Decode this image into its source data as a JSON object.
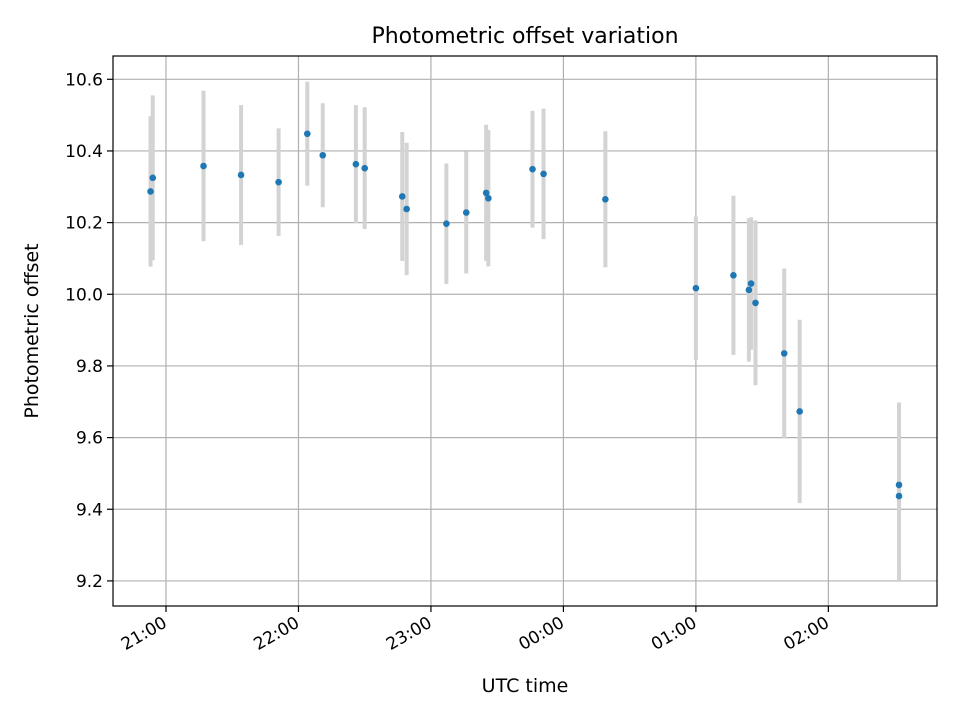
{
  "chart_data": {
    "type": "scatter",
    "title": "Photometric offset variation",
    "xlabel": "UTC time",
    "ylabel": "Photometric offset",
    "x_tick_labels": [
      "21:00",
      "22:00",
      "23:00",
      "00:00",
      "01:00",
      "02:00"
    ],
    "x_tick_positions_hours": [
      21,
      22,
      23,
      24,
      25,
      26
    ],
    "xlim_hours": [
      20.6,
      26.82
    ],
    "y_ticks": [
      9.2,
      9.4,
      9.6,
      9.8,
      10.0,
      10.2,
      10.4,
      10.6
    ],
    "y_tick_labels": [
      "9.2",
      "9.4",
      "9.6",
      "9.8",
      "10.0",
      "10.2",
      "10.4",
      "10.6"
    ],
    "ylim": [
      9.13,
      10.665
    ],
    "grid": true,
    "x_time_format": "HH:MM (UTC, next day after 00:00)",
    "errorbar_color": "#d3d3d3",
    "point_color": "#1f77b4",
    "points": [
      {
        "t": "20:53",
        "y": 10.287,
        "err": 0.21
      },
      {
        "t": "20:54",
        "y": 10.325,
        "err": 0.23
      },
      {
        "t": "21:17",
        "y": 10.358,
        "err": 0.21
      },
      {
        "t": "21:34",
        "y": 10.333,
        "err": 0.195
      },
      {
        "t": "21:51",
        "y": 10.313,
        "err": 0.15
      },
      {
        "t": "22:04",
        "y": 10.448,
        "err": 0.145
      },
      {
        "t": "22:11",
        "y": 10.388,
        "err": 0.145
      },
      {
        "t": "22:26",
        "y": 10.363,
        "err": 0.165
      },
      {
        "t": "22:30",
        "y": 10.352,
        "err": 0.17
      },
      {
        "t": "22:47",
        "y": 10.273,
        "err": 0.18
      },
      {
        "t": "22:49",
        "y": 10.238,
        "err": 0.185
      },
      {
        "t": "23:07",
        "y": 10.197,
        "err": 0.168
      },
      {
        "t": "23:16",
        "y": 10.228,
        "err": 0.17
      },
      {
        "t": "23:25",
        "y": 10.283,
        "err": 0.19
      },
      {
        "t": "23:26",
        "y": 10.268,
        "err": 0.19
      },
      {
        "t": "23:46",
        "y": 10.349,
        "err": 0.163
      },
      {
        "t": "23:51",
        "y": 10.336,
        "err": 0.182
      },
      {
        "t": "00:19",
        "y": 10.265,
        "err": 0.19
      },
      {
        "t": "01:00",
        "y": 10.017,
        "err": 0.2
      },
      {
        "t": "01:17",
        "y": 10.053,
        "err": 0.222
      },
      {
        "t": "01:24",
        "y": 10.012,
        "err": 0.2
      },
      {
        "t": "01:25",
        "y": 10.03,
        "err": 0.185
      },
      {
        "t": "01:27",
        "y": 9.976,
        "err": 0.23
      },
      {
        "t": "01:40",
        "y": 9.835,
        "err": 0.237
      },
      {
        "t": "01:47",
        "y": 9.673,
        "err": 0.256
      },
      {
        "t": "02:32",
        "y": 9.468,
        "err": 0.23
      },
      {
        "t": "02:32",
        "y": 9.437,
        "err": 0.24
      }
    ]
  }
}
